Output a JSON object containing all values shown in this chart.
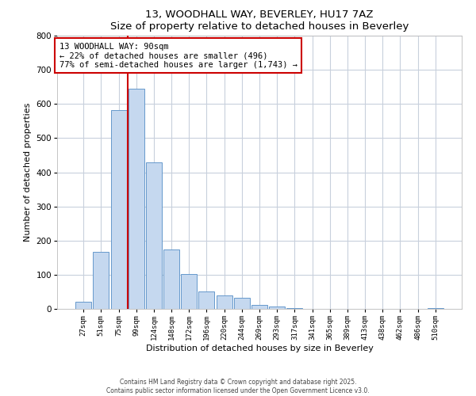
{
  "title_line1": "13, WOODHALL WAY, BEVERLEY, HU17 7AZ",
  "title_line2": "Size of property relative to detached houses in Beverley",
  "xlabel": "Distribution of detached houses by size in Beverley",
  "ylabel": "Number of detached properties",
  "bar_labels": [
    "27sqm",
    "51sqm",
    "75sqm",
    "99sqm",
    "124sqm",
    "148sqm",
    "172sqm",
    "196sqm",
    "220sqm",
    "244sqm",
    "269sqm",
    "293sqm",
    "317sqm",
    "341sqm",
    "365sqm",
    "389sqm",
    "413sqm",
    "438sqm",
    "462sqm",
    "486sqm",
    "510sqm"
  ],
  "bar_values": [
    20,
    168,
    583,
    645,
    430,
    174,
    101,
    51,
    40,
    33,
    12,
    8,
    2,
    1,
    0,
    0,
    0,
    0,
    0,
    0,
    2
  ],
  "bar_color": "#c5d8ef",
  "bar_edge_color": "#6699cc",
  "vline_x_index": 3,
  "vline_color": "#cc0000",
  "ylim": [
    0,
    800
  ],
  "yticks": [
    0,
    100,
    200,
    300,
    400,
    500,
    600,
    700,
    800
  ],
  "annotation_title": "13 WOODHALL WAY: 90sqm",
  "annotation_line2": "← 22% of detached houses are smaller (496)",
  "annotation_line3": "77% of semi-detached houses are larger (1,743) →",
  "annotation_box_color": "#cc0000",
  "footer_line1": "Contains HM Land Registry data © Crown copyright and database right 2025.",
  "footer_line2": "Contains public sector information licensed under the Open Government Licence v3.0.",
  "background_color": "#ffffff",
  "grid_color": "#c8d0dc"
}
